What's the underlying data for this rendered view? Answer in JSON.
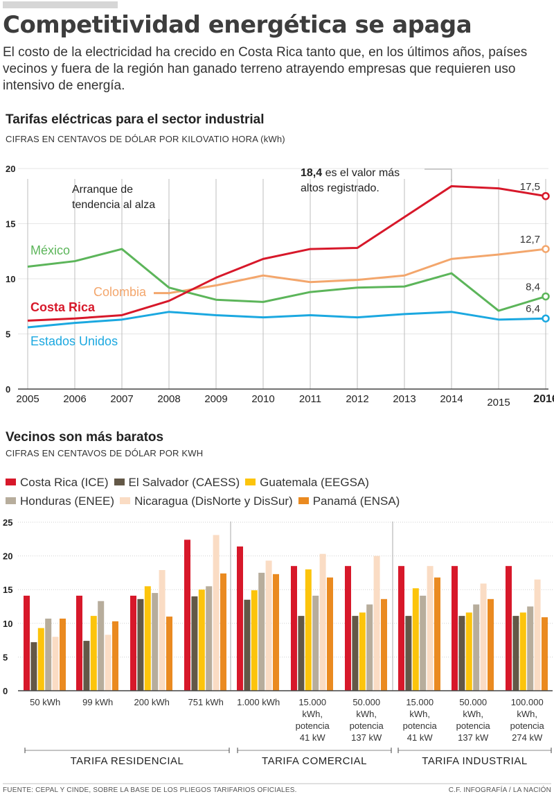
{
  "header": {
    "title": "Competitividad energética se apaga",
    "intro": "El costo de la electricidad ha crecido en Costa Rica tanto que, en los últimos años, países vecinos y fuera de la región han ganado terreno atrayendo empresas que requieren uso intensivo de energía."
  },
  "section1": {
    "title": "Tarifas eléctricas para el sector industrial",
    "subtitle": "CIFRAS EN CENTAVOS DE DÓLAR POR KILOVATIO HORA (kWh)"
  },
  "section2": {
    "title": "Vecinos son más baratos",
    "subtitle": "CIFRAS EN CENTAVOS DE DÓLAR POR KWH"
  },
  "colors": {
    "costa_rica": "#d7182a",
    "mexico": "#5cb55a",
    "colombia": "#f3a66c",
    "usa": "#1ba8e0",
    "el_salvador": "#635847",
    "guatemala": "#fcc40c",
    "honduras": "#b7ad9c",
    "nicaragua": "#fadcc4",
    "panama": "#ea8a20"
  },
  "chart_data": [
    {
      "type": "line",
      "title": "Tarifas eléctricas para el sector industrial",
      "subtitle": "CIFRAS EN CENTAVOS DE DÓLAR POR KILOVATIO HORA (kWh)",
      "x": [
        "2005",
        "2006",
        "2007",
        "2008",
        "2009",
        "2010",
        "2011",
        "2012",
        "2013",
        "2014",
        "2015",
        "2016"
      ],
      "highlight_x": "2016",
      "yticks": [
        0,
        5,
        10,
        15,
        20
      ],
      "ylim": [
        0,
        20
      ],
      "grid": true,
      "series": [
        {
          "name": "Costa Rica",
          "key": "costa_rica",
          "values": [
            6.2,
            6.4,
            6.7,
            8.0,
            10.1,
            11.8,
            12.7,
            12.8,
            15.6,
            18.4,
            18.2,
            17.5
          ],
          "end_label": "17,5"
        },
        {
          "name": "México",
          "key": "mexico",
          "values": [
            11.1,
            11.6,
            12.7,
            9.2,
            8.1,
            7.9,
            8.8,
            9.2,
            9.3,
            10.5,
            7.1,
            8.4
          ],
          "end_label": "8,4"
        },
        {
          "name": "Colombia",
          "key": "colombia",
          "values": [
            null,
            null,
            null,
            8.7,
            9.4,
            10.3,
            9.7,
            9.9,
            10.3,
            11.8,
            12.2,
            12.7
          ],
          "end_label": "12,7"
        },
        {
          "name": "Estados Unidos",
          "key": "usa",
          "values": [
            5.6,
            6.0,
            6.3,
            7.0,
            6.7,
            6.5,
            6.7,
            6.5,
            6.8,
            7.0,
            6.3,
            6.4
          ],
          "end_label": "6,4"
        }
      ],
      "annotations": [
        {
          "text": "Arranque de tendencia al alza",
          "lines": [
            "Arranque de",
            "tendencia al alza"
          ],
          "x": "2008"
        },
        {
          "bold": "18,4",
          "lines": [
            " es el valor más",
            "altos registrado."
          ],
          "x": "2014"
        }
      ]
    },
    {
      "type": "bar",
      "title": "Vecinos son más baratos",
      "subtitle": "CIFRAS EN CENTAVOS DE DÓLAR POR KWH",
      "categories": [
        [
          "50 kWh"
        ],
        [
          "99 kWh"
        ],
        [
          "200 kWh"
        ],
        [
          "751 kWh"
        ],
        [
          "1.000 kWh"
        ],
        [
          "15.000",
          "kWh,",
          "potencia",
          "41 kW"
        ],
        [
          "50.000",
          "kWh,",
          "potencia",
          "137 kW"
        ],
        [
          "15.000",
          "kWh,",
          "potencia",
          "41 kW"
        ],
        [
          "50.000",
          "kWh,",
          "potencia",
          "137 kW"
        ],
        [
          "100.000",
          "kWh,",
          "potencia",
          "274 kW"
        ]
      ],
      "groups": [
        {
          "label": "TARIFA RESIDENCIAL",
          "from": 0,
          "to": 3
        },
        {
          "label": "TARIFA COMERCIAL",
          "from": 4,
          "to": 6
        },
        {
          "label": "TARIFA INDUSTRIAL",
          "from": 7,
          "to": 9
        }
      ],
      "yticks": [
        0,
        5,
        10,
        15,
        20,
        25
      ],
      "ylim": [
        0,
        25
      ],
      "grid": true,
      "legend_position": "top-left",
      "series": [
        {
          "name": "Costa Rica (ICE)",
          "key": "costa_rica",
          "values": [
            14.1,
            14.1,
            14.1,
            22.4,
            21.4,
            18.5,
            18.5,
            18.5,
            18.5,
            18.5
          ]
        },
        {
          "name": "El Salvador (CAESS)",
          "key": "el_salvador",
          "values": [
            7.2,
            7.4,
            13.6,
            14.0,
            13.5,
            11.1,
            11.1,
            11.1,
            11.1,
            11.1
          ]
        },
        {
          "name": "Guatemala (EEGSA)",
          "key": "guatemala",
          "values": [
            9.3,
            11.1,
            15.5,
            15.0,
            14.9,
            18.0,
            11.6,
            15.2,
            11.6,
            11.6
          ]
        },
        {
          "name": "Honduras (ENEE)",
          "key": "honduras",
          "values": [
            10.7,
            13.3,
            14.5,
            15.5,
            17.5,
            14.1,
            12.8,
            14.1,
            12.8,
            12.5
          ]
        },
        {
          "name": "Nicaragua (DisNorte y DisSur)",
          "key": "nicaragua",
          "values": [
            8.0,
            8.3,
            17.9,
            23.1,
            19.3,
            20.3,
            20.0,
            18.5,
            15.9,
            16.5
          ]
        },
        {
          "name": "Panamá (ENSA)",
          "key": "panama",
          "values": [
            10.7,
            10.3,
            11.0,
            17.4,
            17.3,
            16.8,
            13.6,
            16.8,
            13.6,
            10.9
          ]
        }
      ]
    }
  ],
  "footer": {
    "source": "FUENTE: CEPAL Y CINDE, SOBRE LA BASE DE LOS PLIEGOS TARIFARIOS OFICIALES.",
    "credit": "C.F. INFOGRAFÍA / LA NACIÓN"
  }
}
